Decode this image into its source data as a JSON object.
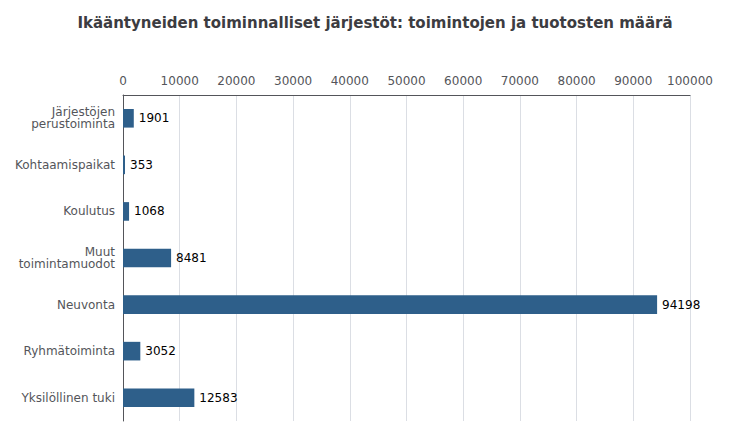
{
  "chart_data": {
    "type": "bar",
    "orientation": "horizontal",
    "title": "Ikääntyneiden toiminnalliset järjestöt: toimintojen ja tuotosten määrä",
    "categories": [
      "Järjestöjen\nperustoiminta",
      "Kohtaamispaikat",
      "Koulutus",
      "Muut\ntoimintamuodot",
      "Neuvonta",
      "Ryhmätoiminta",
      "Yksilöllinen tuki"
    ],
    "values": [
      1901,
      353,
      1068,
      8481,
      94198,
      3052,
      12583
    ],
    "color": "#2E5F8A",
    "xlim": [
      0,
      100000
    ],
    "xticks": [
      0,
      10000,
      20000,
      30000,
      40000,
      50000,
      60000,
      70000,
      80000,
      90000,
      100000
    ],
    "grid": true,
    "data_labels": true
  }
}
